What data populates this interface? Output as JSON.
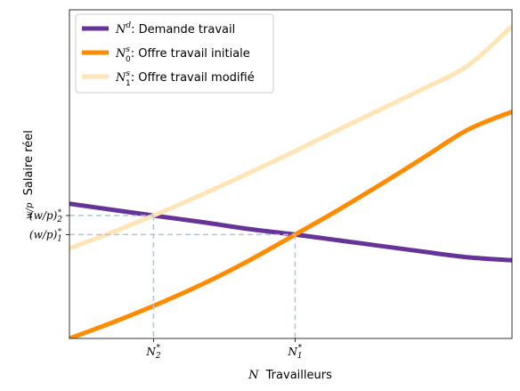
{
  "chart_data": {
    "type": "line",
    "title": "",
    "xlabel_var": "N",
    "xlabel_text": "Travailleurs",
    "ylabel_var": "w/p",
    "ylabel_text": "Salaire réel",
    "xlim": [
      0,
      10
    ],
    "ylim": [
      0,
      10
    ],
    "grid": false,
    "legend_position": "top-left",
    "x_ticks": [
      {
        "label": "N2*",
        "x": 1.9
      },
      {
        "label": "N1*",
        "x": 5.1
      }
    ],
    "y_ticks": [
      {
        "label": "(w/p)2*",
        "y": 3.74
      },
      {
        "label": "(w/p)1*",
        "y": 3.16
      }
    ],
    "series": [
      {
        "name": "N^d: Demande travail",
        "legend_sym": "N",
        "legend_sup": "d",
        "legend_sub": "",
        "legend_text": ": Demande travail",
        "color": "#663399",
        "opacity": 1,
        "x": [
          0,
          1,
          1.9,
          3,
          4,
          5.1,
          6,
          7,
          8,
          9,
          10
        ],
        "y": [
          4.1,
          3.91,
          3.74,
          3.54,
          3.34,
          3.16,
          3.0,
          2.82,
          2.64,
          2.47,
          2.38
        ]
      },
      {
        "name": "N0^s: Offre travail initiale",
        "legend_sym": "N",
        "legend_sup": "s",
        "legend_sub": "0",
        "legend_text": ": Offre travail initiale",
        "color": "#ff8c00",
        "opacity": 1,
        "x": [
          0,
          1,
          1.9,
          3,
          4,
          5.1,
          6,
          7,
          8,
          9,
          10
        ],
        "y": [
          0.0,
          0.5,
          0.99,
          1.65,
          2.33,
          3.16,
          3.85,
          4.66,
          5.5,
          6.35,
          6.9
        ]
      },
      {
        "name": "N1^s: Offre travail modifié",
        "legend_sym": "N",
        "legend_sup": "s",
        "legend_sub": "1",
        "legend_text": ": Offre travail modifié",
        "color": "#ffe4b5",
        "opacity": 1,
        "x": [
          0,
          1,
          1.9,
          3,
          4,
          5.1,
          6,
          7,
          8,
          9,
          10
        ],
        "y": [
          2.74,
          3.25,
          3.74,
          4.38,
          5.0,
          5.7,
          6.3,
          6.95,
          7.6,
          8.3,
          9.5
        ]
      }
    ],
    "guides": [
      {
        "x": 1.9,
        "y": 3.74
      },
      {
        "x": 5.1,
        "y": 3.16
      }
    ],
    "guide_color": "#b0c4de"
  }
}
